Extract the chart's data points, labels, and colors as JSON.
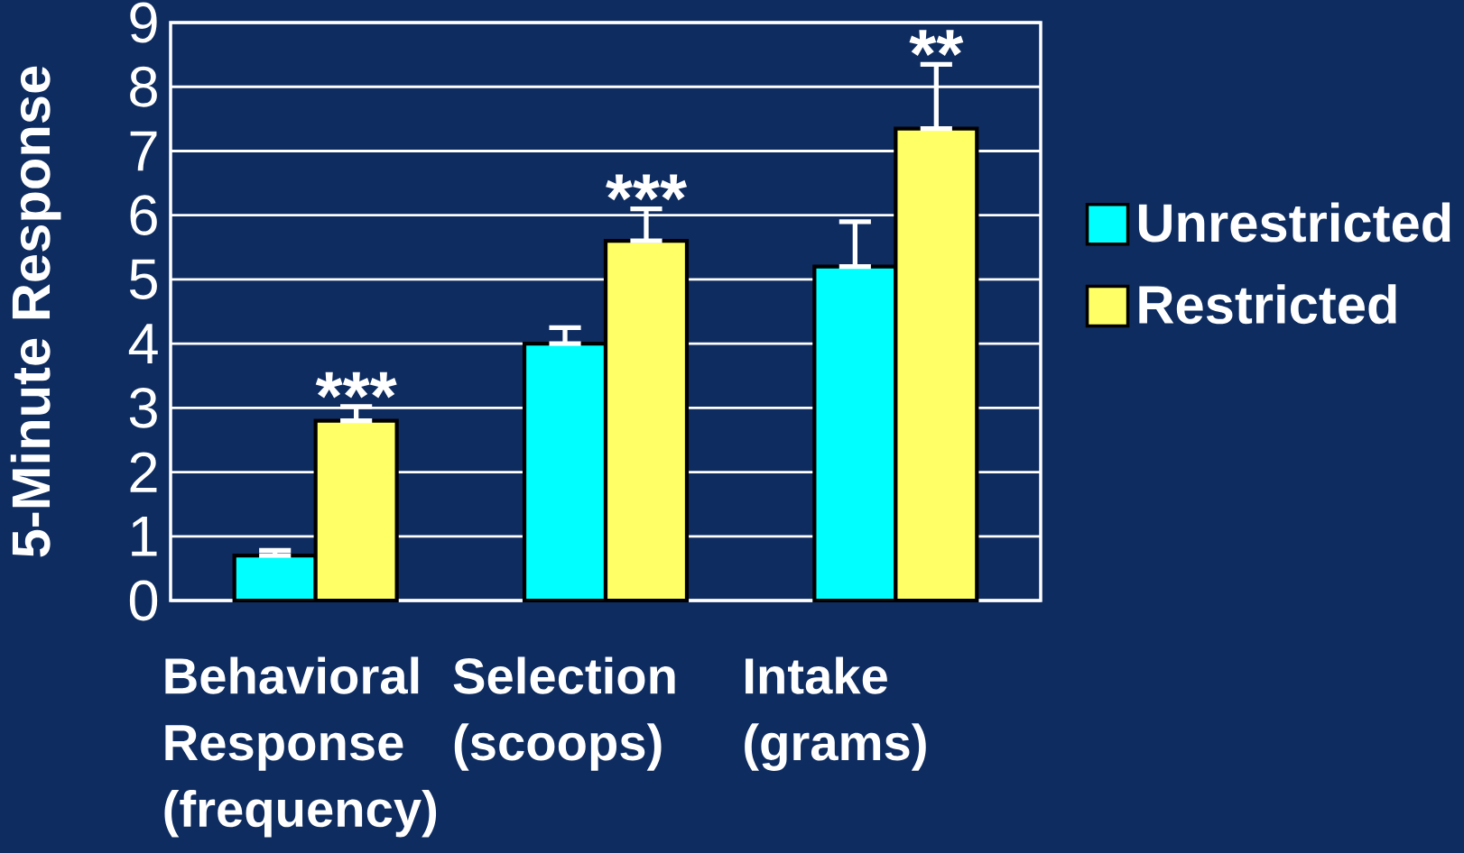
{
  "chart_data": {
    "type": "bar",
    "ylabel": "5-Minute Response",
    "categories": [
      "Behavioral Response (frequency)",
      "Selection (scoops)",
      "Intake (grams)"
    ],
    "series": [
      {
        "name": "Unrestricted",
        "color": "#00ffff",
        "values": [
          0.7,
          4.0,
          5.2
        ],
        "errors": [
          [
            0.7,
            0.78
          ],
          [
            4.0,
            4.25
          ],
          [
            5.2,
            5.9
          ]
        ]
      },
      {
        "name": "Restricted",
        "color": "#ffff66",
        "values": [
          2.8,
          5.6,
          7.35
        ],
        "errors": [
          [
            2.8,
            3.02
          ],
          [
            5.6,
            6.1
          ],
          [
            7.35,
            8.35
          ]
        ]
      }
    ],
    "ylim": [
      0,
      9
    ],
    "yticks": [
      0,
      1,
      2,
      3,
      4,
      5,
      6,
      7,
      8,
      9
    ],
    "grid": "y",
    "legend": "right",
    "annotations": [
      "***",
      "***",
      "**"
    ]
  }
}
